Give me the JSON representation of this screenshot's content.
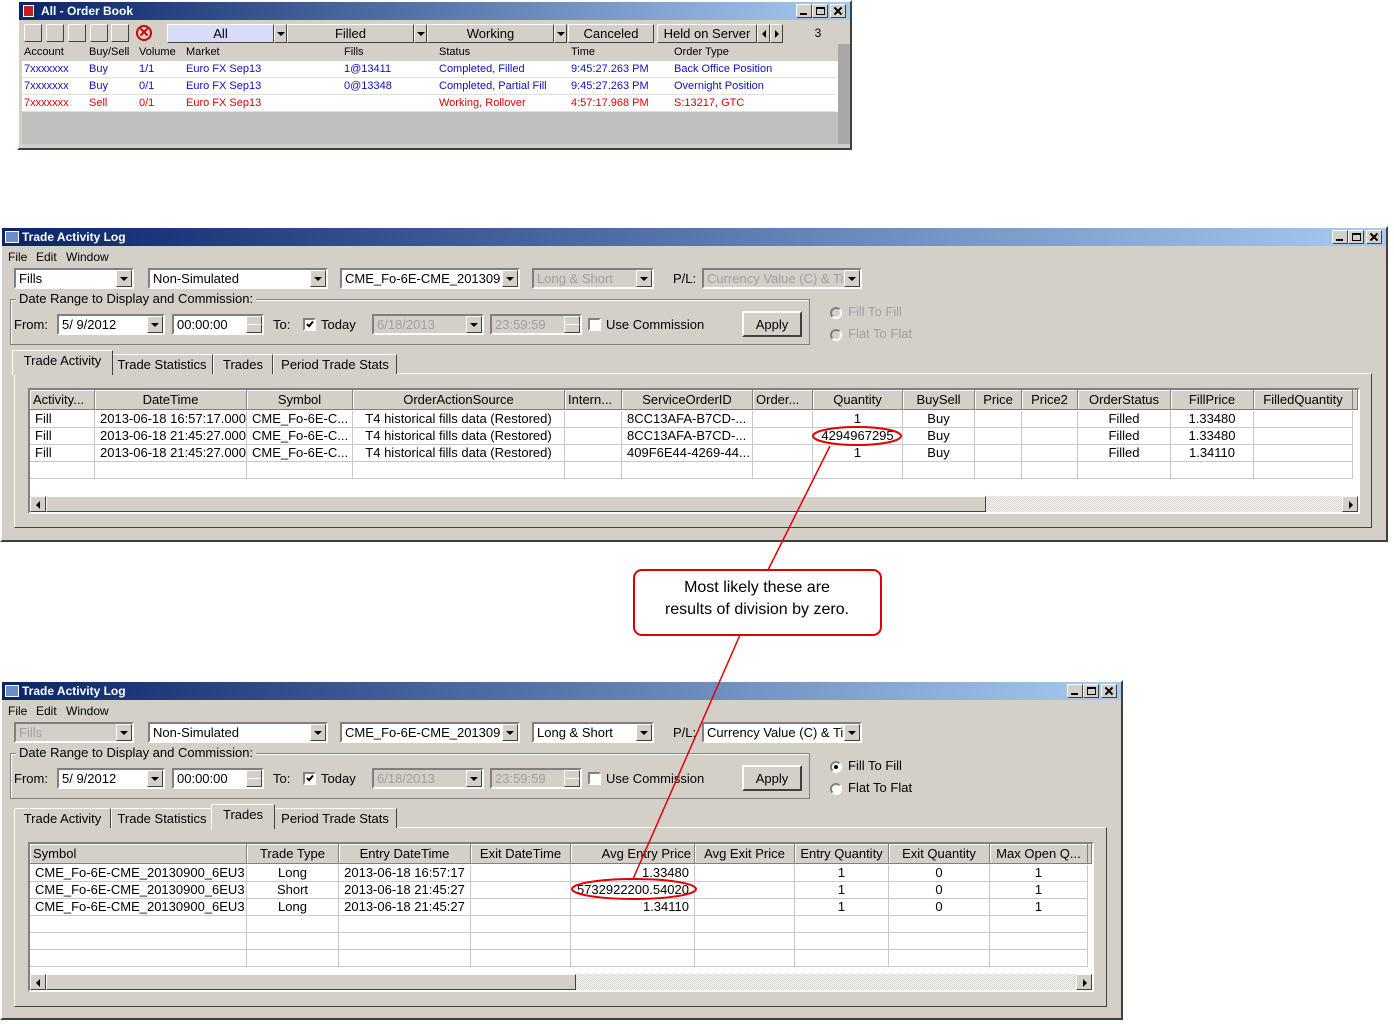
{
  "order_book": {
    "title": "All - Order Book",
    "filters": [
      "All",
      "Filled",
      "Working",
      "Canceled",
      "Held on Server"
    ],
    "count": 3,
    "columns": [
      "Account",
      "Buy/Sell",
      "Volume",
      "Market",
      "Fills",
      "Status",
      "Time",
      "Order Type"
    ],
    "rows": [
      [
        "7xxxxxxx",
        "Buy",
        "1/1",
        "Euro FX Sep13",
        "1@13411",
        "Completed, Filled",
        "9:45:27.263 PM",
        "Back Office Position"
      ],
      [
        "7xxxxxxx",
        "Buy",
        "0/1",
        "Euro FX Sep13",
        "0@13348",
        "Completed, Partial Fill",
        "9:45:27.263 PM",
        "Overnight Position"
      ],
      [
        "7xxxxxxx",
        "Sell",
        "0/1",
        "Euro FX Sep13",
        null,
        "Working, Rollover",
        "4:57:17.968 PM",
        "S:13217, GTC"
      ]
    ]
  },
  "trade_log_1": {
    "title": "Trade Activity Log",
    "menu": [
      "File",
      "Edit",
      "Window"
    ],
    "selectors": {
      "type": "Fills",
      "simulation": "Non-Simulated",
      "contract": "CME_Fo-6E-CME_201309(",
      "side": "Long & Short",
      "pl_label": "P/L:",
      "pl_mode": "Currency Value (C) & Ti"
    },
    "date_range": {
      "legend": "Date Range to Display and Commission:",
      "from_label": "From:",
      "from_date": "5/ 9/2012",
      "from_time": "00:00:00",
      "to_label": "To:",
      "today": "Today",
      "to_date": "6/18/2013",
      "to_time": "23:59:59",
      "use_commission": "Use Commission",
      "apply": "Apply"
    },
    "radios": [
      "Fill To Fill",
      "Flat To Flat"
    ],
    "tabs": [
      "Trade Activity",
      "Trade Statistics",
      "Trades",
      "Period Trade Stats"
    ],
    "grid": {
      "columns": [
        "Activity...",
        "DateTime",
        "Symbol",
        "OrderActionSource",
        "Intern...",
        "ServiceOrderID",
        "Order...",
        "Quantity",
        "BuySell",
        "Price",
        "Price2",
        "OrderStatus",
        "FillPrice",
        "FilledQuantity"
      ],
      "rows": [
        [
          "Fill",
          "2013-06-18 16:57:17.000",
          "CME_Fo-6E-C...",
          "T4 historical fills data (Restored)",
          null,
          "8CC13AFA-B7CD-...",
          null,
          1,
          "Buy",
          null,
          null,
          "Filled",
          "1.33480",
          null
        ],
        [
          "Fill",
          "2013-06-18 21:45:27.000",
          "CME_Fo-6E-C...",
          "T4 historical fills data (Restored)",
          null,
          "8CC13AFA-B7CD-...",
          null,
          4294967295,
          "Buy",
          null,
          null,
          "Filled",
          "1.33480",
          null
        ],
        [
          "Fill",
          "2013-06-18 21:45:27.000",
          "CME_Fo-6E-C...",
          "T4 historical fills data (Restored)",
          null,
          "409F6E44-4269-44...",
          null,
          1,
          "Buy",
          null,
          null,
          "Filled",
          "1.34110",
          null
        ]
      ]
    }
  },
  "trade_log_2": {
    "title": "Trade Activity Log",
    "menu": [
      "File",
      "Edit",
      "Window"
    ],
    "selectors": {
      "type": "Fills",
      "simulation": "Non-Simulated",
      "contract": "CME_Fo-6E-CME_201309(",
      "side": "Long & Short",
      "pl_label": "P/L:",
      "pl_mode": "Currency Value (C) & Ti"
    },
    "date_range": {
      "legend": "Date Range to Display and Commission:",
      "from_label": "From:",
      "from_date": "5/ 9/2012",
      "from_time": "00:00:00",
      "to_label": "To:",
      "today": "Today",
      "to_date": "6/18/2013",
      "to_time": "23:59:59",
      "use_commission": "Use Commission",
      "apply": "Apply"
    },
    "radios": [
      "Fill To Fill",
      "Flat To Flat"
    ],
    "tabs": [
      "Trade Activity",
      "Trade Statistics",
      "Trades",
      "Period Trade Stats"
    ],
    "grid": {
      "columns": [
        "Symbol",
        "Trade Type",
        "Entry DateTime",
        "Exit DateTime",
        "Avg Entry Price",
        "Avg Exit Price",
        "Entry Quantity",
        "Exit Quantity",
        "Max Open Q..."
      ],
      "rows": [
        [
          "CME_Fo-6E-CME_20130900_6EU3",
          "Long",
          "2013-06-18 16:57:17",
          null,
          "1.33480",
          null,
          1,
          0,
          1
        ],
        [
          "CME_Fo-6E-CME_20130900_6EU3",
          "Short",
          "2013-06-18 21:45:27",
          null,
          "5732922200.54020",
          null,
          1,
          0,
          1
        ],
        [
          "CME_Fo-6E-CME_20130900_6EU3",
          "Long",
          "2013-06-18 21:45:27",
          null,
          "1.34110",
          null,
          1,
          0,
          1
        ]
      ]
    }
  },
  "callout": {
    "lines": [
      "Most likely these are",
      "results of division by zero."
    ]
  }
}
